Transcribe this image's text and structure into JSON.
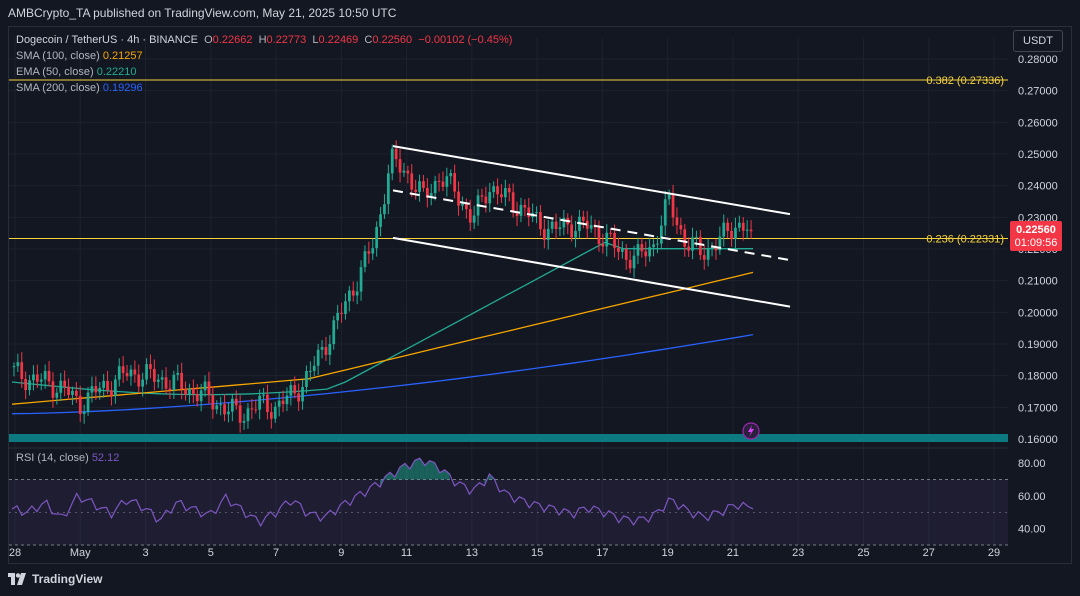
{
  "header": {
    "publish_line": "AMBCrypto_TA published on TradingView.com, May 21, 2025 10:50 UTC"
  },
  "legend": {
    "symbol": "Dogecoin / TetherUS · 4h · BINANCE",
    "o_label": "O",
    "o": "0.22662",
    "h_label": "H",
    "h": "0.22773",
    "l_label": "L",
    "l": "0.22469",
    "c_label": "C",
    "c": "0.22560",
    "change": "−0.00102 (−0.45%)",
    "sma100_label": "SMA (100, close)",
    "sma100": "0.21257",
    "ema50_label": "EMA (50, close)",
    "ema50": "0.22210",
    "sma200_label": "SMA (200, close)",
    "sma200": "0.19296",
    "sma100_color": "#f7a600",
    "ema50_color": "#22ab94",
    "sma200_color": "#2962ff"
  },
  "currency": "USDT",
  "rsi_legend": {
    "label": "RSI (14, close)",
    "value": "52.12"
  },
  "price_tag": {
    "price": "0.22560",
    "countdown": "01:09:56"
  },
  "footer": {
    "brand": "TradingView"
  },
  "chart_data": {
    "type": "candlestick",
    "timeframe": "4h",
    "y_axis": {
      "ticks": [
        "0.28000",
        "0.27000",
        "0.26000",
        "0.25000",
        "0.24000",
        "0.23000",
        "0.22000",
        "0.21000",
        "0.20000",
        "0.19000",
        "0.18000",
        "0.17000",
        "0.16000"
      ],
      "ylim": [
        0.16,
        0.28
      ]
    },
    "x_axis": {
      "ticks": [
        "28",
        "May",
        "3",
        "5",
        "7",
        "9",
        "11",
        "13",
        "15",
        "17",
        "19",
        "21",
        "23",
        "25",
        "27",
        "29"
      ]
    },
    "fib_levels": [
      {
        "label": "0.382 (0.27336)",
        "value": 0.27336,
        "color": "#f7d23b"
      },
      {
        "label": "0.236 (0.22331)",
        "value": 0.22331,
        "color": "#f7d23b"
      }
    ],
    "candles_close_path": [
      0.181,
      0.179,
      0.178,
      0.176,
      0.171,
      0.175,
      0.178,
      0.181,
      0.18,
      0.179,
      0.177,
      0.175,
      0.173,
      0.169,
      0.168,
      0.171,
      0.17,
      0.174,
      0.18,
      0.19,
      0.2,
      0.211,
      0.222,
      0.248,
      0.244,
      0.236,
      0.243,
      0.238,
      0.229,
      0.24,
      0.236,
      0.233,
      0.228,
      0.226,
      0.228,
      0.227,
      0.224,
      0.219,
      0.217,
      0.221,
      0.235,
      0.222,
      0.219,
      0.222,
      0.228,
      0.2256
    ],
    "channel": {
      "upper": {
        "from_date": "May 10",
        "from_val": 0.2525,
        "to_date": "May 22",
        "to_val": 0.231
      },
      "middle": {
        "from_date": "May 10",
        "from_val": 0.2385,
        "to_date": "May 22",
        "to_val": 0.2165
      },
      "lower": {
        "from_date": "May 10",
        "from_val": 0.2235,
        "to_date": "May 22",
        "to_val": 0.2018
      }
    },
    "rsi": {
      "ticks": [
        "80.00",
        "60.00",
        "40.00"
      ],
      "ylim": [
        30,
        85
      ],
      "values": [
        52,
        50,
        56,
        46,
        60,
        55,
        49,
        58,
        53,
        45,
        56,
        52,
        48,
        59,
        51,
        44,
        50,
        58,
        49,
        47,
        54,
        60,
        66,
        73,
        79,
        82,
        77,
        68,
        63,
        72,
        61,
        57,
        54,
        52,
        49,
        53,
        50,
        46,
        45,
        48,
        58,
        51,
        47,
        50,
        55,
        52
      ]
    },
    "series_colors": {
      "up": "#22ab94",
      "down": "#f23645",
      "sma100": "#f7a600",
      "ema50": "#22ab94",
      "sma200": "#2962ff",
      "rsi": "#7e57c2"
    }
  }
}
